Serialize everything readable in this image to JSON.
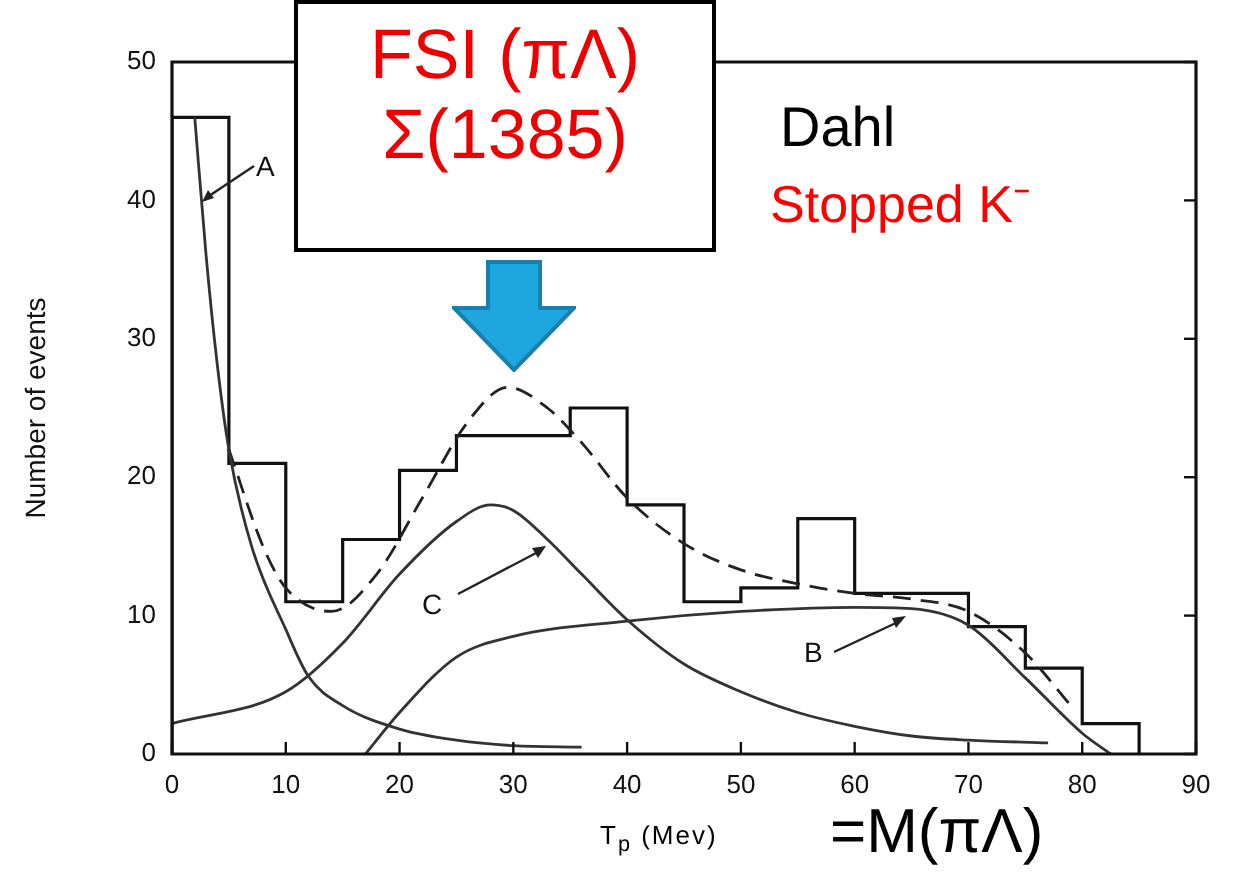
{
  "chart_data": {
    "type": "histogram",
    "xlabel": "T$_{p}$ (Mev)",
    "ylabel": "Number of events",
    "bins": [
      0,
      5,
      10,
      15,
      20,
      25,
      30,
      35,
      40,
      45,
      50,
      55,
      60,
      65,
      70,
      75,
      80,
      85
    ],
    "values": [
      46,
      21,
      11,
      15.5,
      20.5,
      23,
      23,
      25,
      18,
      11,
      12,
      17,
      11.6,
      11.6,
      9.2,
      6.2,
      2.2
    ],
    "color": "#111111",
    "xlim": [
      0,
      90
    ],
    "xticks": [
      0,
      10,
      20,
      30,
      40,
      50,
      60,
      70,
      80,
      90
    ],
    "ylim": [
      0,
      50
    ],
    "yticks": [
      0,
      10,
      20,
      30,
      40,
      50
    ],
    "marker": "none",
    "series": [
      {
        "type": "line",
        "color": "#333333",
        "line_style": "solid",
        "x": [
          2,
          3,
          4,
          5,
          7,
          10,
          12,
          15,
          20,
          25,
          30,
          36
        ],
        "values": [
          46,
          36,
          28,
          22,
          15,
          9,
          5.6,
          3.5,
          1.8,
          1,
          0.6,
          0.5
        ]
      },
      {
        "type": "line",
        "color": "#333333",
        "line_style": "solid",
        "x": [
          17,
          20,
          25,
          30,
          40,
          50,
          60,
          65,
          70,
          75,
          80,
          82.5
        ],
        "values": [
          0,
          3,
          7,
          8.5,
          9.6,
          10.3,
          10.6,
          10.5,
          9.3,
          5.5,
          1.5,
          0
        ]
      },
      {
        "type": "line",
        "color": "#333333",
        "line_style": "solid",
        "x": [
          0,
          10,
          15,
          20,
          25,
          28,
          30,
          33,
          36,
          40,
          45,
          50,
          55,
          60,
          65,
          70,
          77
        ],
        "values": [
          2.2,
          4.5,
          8,
          13,
          16.8,
          18,
          17.6,
          15.5,
          13,
          9.7,
          6.5,
          4.5,
          3,
          2,
          1.3,
          1,
          0.8
        ]
      },
      {
        "type": "line",
        "color": "#222222",
        "line_style": "dashed",
        "x": [
          5,
          8,
          10,
          14,
          18,
          22,
          26,
          29.5,
          33,
          36,
          40,
          45,
          50,
          55,
          60,
          65,
          70,
          75,
          79
        ],
        "values": [
          22,
          15,
          12,
          10.3,
          13,
          18.5,
          24,
          26.5,
          25,
          22.5,
          18.5,
          15.2,
          13.3,
          12.3,
          11.6,
          11.2,
          10.3,
          7.3,
          3.5
        ]
      }
    ],
    "annotations": [
      "A",
      "C",
      "B",
      "FSI (πΛ)\nΣ(1385)",
      "Dahl",
      "Stopped K⁻",
      "=M(πΛ)"
    ]
  }
}
